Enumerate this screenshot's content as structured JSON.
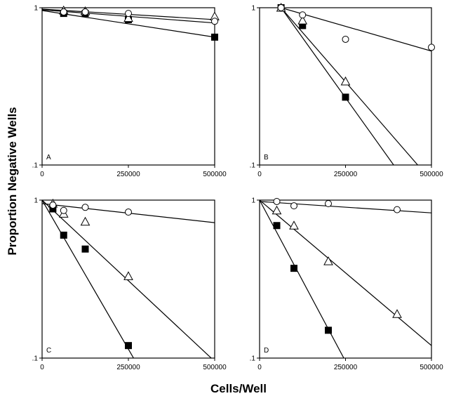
{
  "figure": {
    "xlabel": "Cells/Well",
    "ylabel": "Proportion Negative Wells"
  },
  "chart_data": [
    {
      "type": "scatter",
      "panel": "A",
      "ylog": true,
      "ylim": [
        0.1,
        1
      ],
      "xlim": [
        0,
        500000
      ],
      "yticks": [
        "1",
        ".1"
      ],
      "xticks": [
        "0",
        "250000",
        "500000"
      ],
      "series": [
        {
          "marker": "filled-square",
          "x": [
            62500,
            125000,
            250000,
            500000
          ],
          "y": [
            0.92,
            0.92,
            0.84,
            0.65
          ],
          "fit": [
            [
              0,
              0.96
            ],
            [
              500000,
              0.65
            ]
          ]
        },
        {
          "marker": "open-triangle",
          "x": [
            62500,
            125000,
            250000,
            500000
          ],
          "y": [
            0.96,
            0.95,
            0.86,
            0.88
          ],
          "fit": [
            [
              0,
              0.98
            ],
            [
              500000,
              0.84
            ]
          ]
        },
        {
          "marker": "open-circle",
          "x": [
            62500,
            125000,
            250000,
            500000
          ],
          "y": [
            0.94,
            0.94,
            0.92,
            0.82
          ],
          "fit": [
            [
              0,
              0.97
            ],
            [
              500000,
              0.8
            ]
          ]
        }
      ]
    },
    {
      "type": "scatter",
      "panel": "B",
      "ylog": true,
      "ylim": [
        0.1,
        1
      ],
      "xlim": [
        0,
        500000
      ],
      "yticks": [
        "1",
        ".1"
      ],
      "xticks": [
        "0",
        "250000",
        "500000"
      ],
      "series": [
        {
          "marker": "filled-square",
          "x": [
            62500,
            125000,
            250000
          ],
          "y": [
            1.0,
            0.77,
            0.27
          ],
          "fit": [
            [
              62500,
              1.0
            ],
            [
              390000,
              0.1
            ]
          ]
        },
        {
          "marker": "open-triangle",
          "x": [
            62500,
            125000,
            250000
          ],
          "y": [
            1.0,
            0.83,
            0.34
          ],
          "fit": [
            [
              62500,
              1.0
            ],
            [
              460000,
              0.1
            ]
          ]
        },
        {
          "marker": "open-circle",
          "x": [
            62500,
            125000,
            250000,
            500000
          ],
          "y": [
            1.0,
            0.9,
            0.63,
            0.56
          ],
          "fit": [
            [
              62500,
              1.0
            ],
            [
              500000,
              0.53
            ]
          ]
        }
      ]
    },
    {
      "type": "scatter",
      "panel": "C",
      "ylog": true,
      "ylim": [
        0.1,
        1
      ],
      "xlim": [
        0,
        500000
      ],
      "yticks": [
        "1",
        ".1"
      ],
      "xticks": [
        "0",
        "250000",
        "500000"
      ],
      "series": [
        {
          "marker": "filled-square",
          "x": [
            31250,
            62500,
            125000,
            250000
          ],
          "y": [
            0.88,
            0.6,
            0.49,
            0.12
          ],
          "fit": [
            [
              0,
              1.0
            ],
            [
              265000,
              0.1
            ]
          ]
        },
        {
          "marker": "open-triangle",
          "x": [
            31250,
            62500,
            125000,
            250000
          ],
          "y": [
            0.95,
            0.82,
            0.73,
            0.33
          ],
          "fit": [
            [
              0,
              1.0
            ],
            [
              490000,
              0.1
            ]
          ]
        },
        {
          "marker": "open-circle",
          "x": [
            31250,
            62500,
            125000,
            250000
          ],
          "y": [
            0.93,
            0.86,
            0.9,
            0.84
          ],
          "fit": [
            [
              0,
              0.95
            ],
            [
              500000,
              0.72
            ]
          ]
        }
      ]
    },
    {
      "type": "scatter",
      "panel": "D",
      "ylog": true,
      "ylim": [
        0.1,
        1
      ],
      "xlim": [
        0,
        500000
      ],
      "yticks": [
        "1",
        ".1"
      ],
      "xticks": [
        "0",
        "250000",
        "500000"
      ],
      "series": [
        {
          "marker": "filled-square",
          "x": [
            50000,
            100000,
            200000
          ],
          "y": [
            0.69,
            0.37,
            0.15
          ],
          "fit": [
            [
              0,
              1.0
            ],
            [
              245000,
              0.1
            ]
          ]
        },
        {
          "marker": "open-triangle",
          "x": [
            50000,
            100000,
            200000,
            400000
          ],
          "y": [
            0.86,
            0.69,
            0.41,
            0.19
          ],
          "fit": [
            [
              0,
              1.0
            ],
            [
              500000,
              0.12
            ]
          ]
        },
        {
          "marker": "open-circle",
          "x": [
            50000,
            100000,
            200000,
            400000
          ],
          "y": [
            0.98,
            0.92,
            0.95,
            0.87
          ],
          "fit": [
            [
              0,
              0.98
            ],
            [
              500000,
              0.83
            ]
          ]
        }
      ]
    }
  ]
}
